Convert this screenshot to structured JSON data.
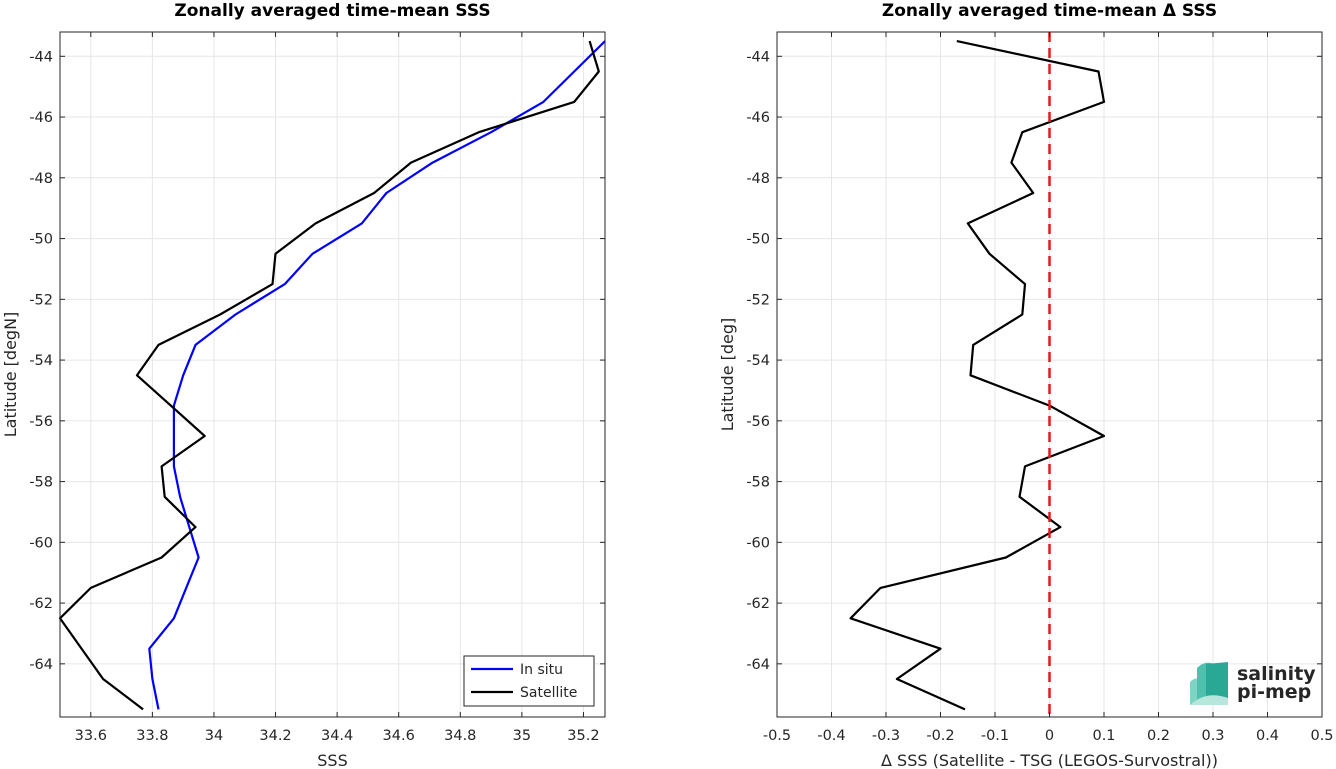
{
  "chart_data": [
    {
      "type": "line",
      "title": "Zonally averaged time-mean SSS",
      "xlabel": "SSS",
      "ylabel": "Latitude [degN]",
      "xlim": [
        33.5,
        35.27
      ],
      "ylim": [
        -65.75,
        -43.2
      ],
      "xticks": [
        33.6,
        33.8,
        34,
        34.2,
        34.4,
        34.6,
        34.8,
        35,
        35.2
      ],
      "xtick_labels": [
        "33.6",
        "33.8",
        "34",
        "34.2",
        "34.4",
        "34.6",
        "34.8",
        "35",
        "35.2"
      ],
      "yticks": [
        -44,
        -46,
        -48,
        -50,
        -52,
        -54,
        -56,
        -58,
        -60,
        -62,
        -64
      ],
      "ytick_labels": [
        "-44",
        "-46",
        "-48",
        "-50",
        "-52",
        "-54",
        "-56",
        "-58",
        "-60",
        "-62",
        "-64"
      ],
      "grid": true,
      "legend_position": "bottom-right",
      "series": [
        {
          "name": "In situ",
          "color": "#0000ff",
          "x": [
            35.27,
            35.17,
            35.07,
            34.9,
            34.71,
            34.56,
            34.48,
            34.32,
            34.23,
            34.07,
            33.94,
            33.9,
            33.87,
            33.87,
            33.87,
            33.89,
            33.92,
            33.95,
            33.91,
            33.87,
            33.79,
            33.8,
            33.82
          ],
          "y": [
            -43.5,
            -44.5,
            -45.5,
            -46.5,
            -47.5,
            -48.5,
            -49.5,
            -50.5,
            -51.5,
            -52.5,
            -53.5,
            -54.5,
            -55.5,
            -56.5,
            -57.5,
            -58.5,
            -59.5,
            -60.5,
            -61.5,
            -62.5,
            -63.5,
            -64.5,
            -65.5
          ]
        },
        {
          "name": "Satellite",
          "color": "#000000",
          "x": [
            35.22,
            35.25,
            35.17,
            34.86,
            34.64,
            34.52,
            34.33,
            34.2,
            34.19,
            34.02,
            33.82,
            33.75,
            33.86,
            33.97,
            33.83,
            33.84,
            33.94,
            33.83,
            33.6,
            33.5,
            33.57,
            33.64,
            33.77
          ],
          "y": [
            -43.5,
            -44.5,
            -45.5,
            -46.5,
            -47.5,
            -48.5,
            -49.5,
            -50.5,
            -51.5,
            -52.5,
            -53.5,
            -54.5,
            -55.5,
            -56.5,
            -57.5,
            -58.5,
            -59.5,
            -60.5,
            -61.5,
            -62.5,
            -63.5,
            -64.5,
            -65.5
          ]
        }
      ]
    },
    {
      "type": "line",
      "title": "Zonally averaged time-mean Δ SSS",
      "xlabel": "Δ SSS (Satellite - TSG (LEGOS-Survostral))",
      "ylabel": "Latitude [deg]",
      "xlim": [
        -0.5,
        0.5
      ],
      "ylim": [
        -65.75,
        -43.2
      ],
      "xticks": [
        -0.5,
        -0.4,
        -0.3,
        -0.2,
        -0.1,
        0,
        0.1,
        0.2,
        0.3,
        0.4,
        0.5
      ],
      "xtick_labels": [
        "-0.5",
        "-0.4",
        "-0.3",
        "-0.2",
        "-0.1",
        "0",
        "0.1",
        "0.2",
        "0.3",
        "0.4",
        "0.5"
      ],
      "yticks": [
        -44,
        -46,
        -48,
        -50,
        -52,
        -54,
        -56,
        -58,
        -60,
        -62,
        -64
      ],
      "ytick_labels": [
        "-44",
        "-46",
        "-48",
        "-50",
        "-52",
        "-54",
        "-56",
        "-58",
        "-60",
        "-62",
        "-64"
      ],
      "grid": true,
      "reference_line": {
        "x": 0,
        "color": "#e31a1c",
        "style": "dashed"
      },
      "series": [
        {
          "color": "#000000",
          "x": [
            -0.17,
            0.09,
            0.1,
            -0.05,
            -0.07,
            -0.03,
            -0.15,
            -0.11,
            -0.045,
            -0.05,
            -0.14,
            -0.145,
            0.0,
            0.1,
            -0.045,
            -0.055,
            0.02,
            -0.08,
            -0.31,
            -0.365,
            -0.2,
            -0.28,
            -0.155
          ],
          "y": [
            -43.5,
            -44.5,
            -45.5,
            -46.5,
            -47.5,
            -48.5,
            -49.5,
            -50.5,
            -51.5,
            -52.5,
            -53.5,
            -54.5,
            -55.5,
            -56.5,
            -57.5,
            -58.5,
            -59.5,
            -60.5,
            -61.5,
            -62.5,
            -63.5,
            -64.5,
            -65.5
          ]
        }
      ]
    }
  ],
  "logo": {
    "line1": "salinity",
    "line2": "pi-mep",
    "color": "#1aa596"
  }
}
